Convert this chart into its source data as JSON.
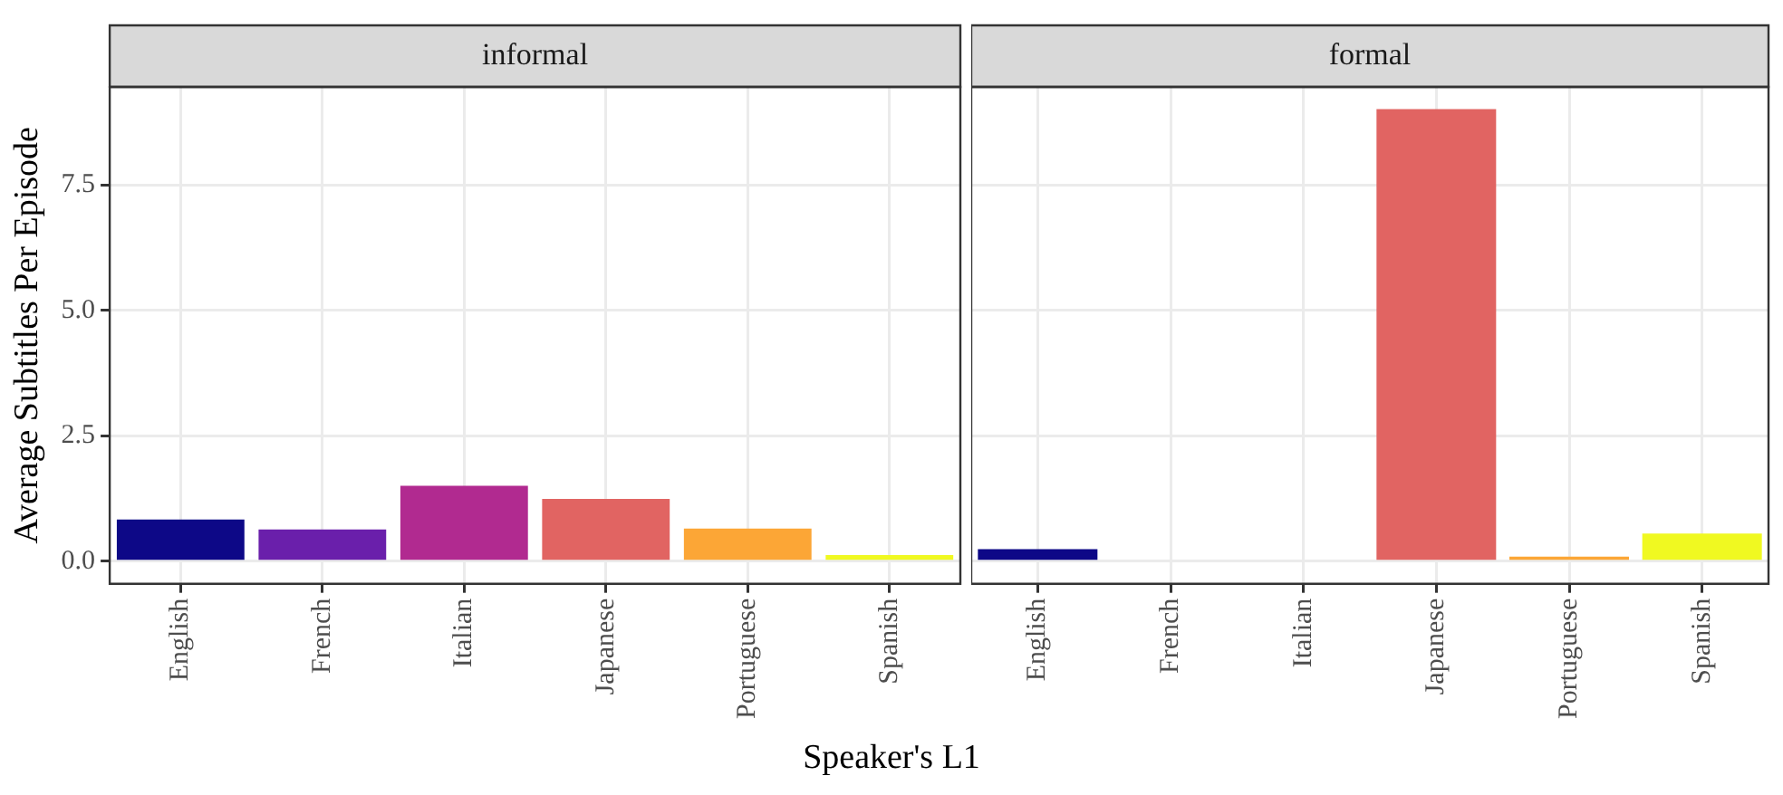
{
  "chart_data": [
    {
      "type": "bar",
      "title": "informal",
      "xlabel": "Speaker's L1",
      "ylabel": "Average Subtitles Per Episode",
      "categories": [
        "English",
        "French",
        "Italian",
        "Japanese",
        "Portuguese",
        "Spanish"
      ],
      "values": [
        0.83,
        0.63,
        1.5,
        1.24,
        0.65,
        0.12
      ],
      "colors": [
        "#0d0887",
        "#6a1fab",
        "#b12a90",
        "#e16462",
        "#fca636",
        "#f0f921"
      ],
      "ylim": [
        -0.45,
        9.45
      ],
      "yticks": [
        {
          "value": 0,
          "label": "0.0"
        },
        2.5,
        {
          "value": 5,
          "label": "5.0"
        },
        7.5
      ],
      "grid": true,
      "legend": false
    },
    {
      "type": "bar",
      "title": "formal",
      "categories": [
        "English",
        "French",
        "Italian",
        "Japanese",
        "Portuguese",
        "Spanish"
      ],
      "values": [
        0.24,
        0,
        0,
        9.01,
        0.09,
        0.55
      ],
      "colors": [
        "#0d0887",
        "#6a1fab",
        "#b12a90",
        "#e16462",
        "#fca636",
        "#f0f921"
      ],
      "ylim": [
        -0.45,
        9.45
      ],
      "yticks": [
        0,
        2.5,
        5,
        7.5
      ],
      "grid": true,
      "legend": false,
      "tick_labels": "x"
    }
  ]
}
